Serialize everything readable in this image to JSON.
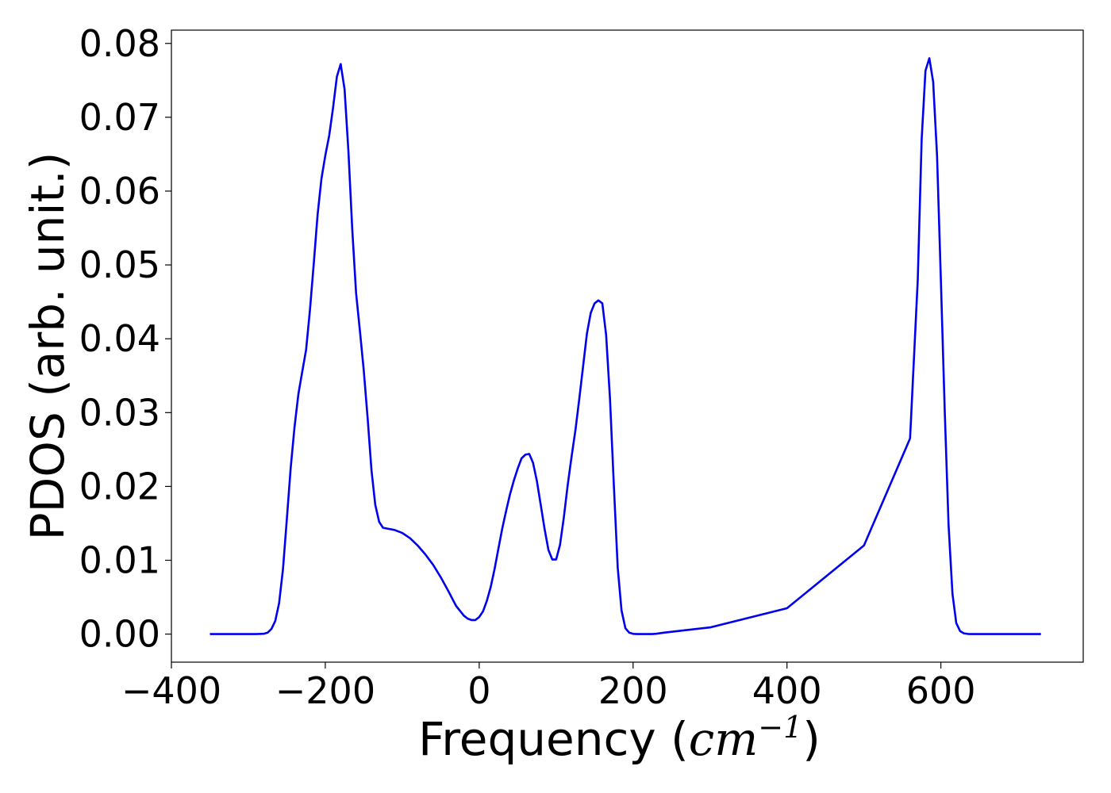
{
  "chart_data": {
    "type": "line",
    "title": "",
    "xlabel": "Frequency (",
    "xlabel_unit": "cm",
    "xlabel_exp": "−1",
    "xlabel_close": ")",
    "ylabel": "PDOS (arb. unit.)",
    "xlim": [
      -400,
      785
    ],
    "ylim": [
      -0.0038,
      0.0818
    ],
    "x_ticks": [
      -400,
      -200,
      0,
      200,
      400,
      600
    ],
    "x_tick_labels": [
      "−400",
      "−200",
      "0",
      "200",
      "400",
      "600"
    ],
    "y_ticks": [
      0.0,
      0.01,
      0.02,
      0.03,
      0.04,
      0.05,
      0.06,
      0.07,
      0.08
    ],
    "y_tick_labels": [
      "0.00",
      "0.01",
      "0.02",
      "0.03",
      "0.04",
      "0.05",
      "0.06",
      "0.07",
      "0.08"
    ],
    "grid": false,
    "legend": "none",
    "series": [
      {
        "color": "#0000ee",
        "x": [
          -350,
          -300,
          -290,
          -280,
          -275,
          -270,
          -265,
          -260,
          -255,
          -250,
          -245,
          -240,
          -235,
          -230,
          -225,
          -220,
          -215,
          -210,
          -205,
          -200,
          -195,
          -190,
          -185,
          -180,
          -175,
          -170,
          -165,
          -160,
          -155,
          -150,
          -145,
          -140,
          -135,
          -130,
          -125,
          -120,
          -115,
          -110,
          -100,
          -90,
          -80,
          -70,
          -60,
          -50,
          -40,
          -30,
          -20,
          -15,
          -10,
          -5,
          0,
          5,
          10,
          15,
          20,
          25,
          30,
          35,
          40,
          45,
          50,
          55,
          60,
          65,
          70,
          75,
          80,
          85,
          90,
          95,
          100,
          105,
          110,
          115,
          120,
          125,
          130,
          135,
          140,
          145,
          150,
          155,
          160,
          165,
          170,
          175,
          180,
          185,
          190,
          195,
          200,
          205,
          210,
          215,
          220,
          225,
          230,
          240,
          300,
          400,
          500,
          560,
          570,
          575,
          580,
          585,
          590,
          595,
          600,
          605,
          610,
          615,
          620,
          625,
          630,
          635,
          640,
          645,
          650,
          655,
          660,
          665,
          670,
          680,
          700,
          730
        ],
        "y": [
          0.0,
          0.0,
          0.0,
          5e-05,
          0.0002,
          0.0007,
          0.0018,
          0.0042,
          0.0088,
          0.0155,
          0.0225,
          0.028,
          0.0325,
          0.0355,
          0.0385,
          0.0438,
          0.0502,
          0.0568,
          0.0617,
          0.0648,
          0.0675,
          0.0712,
          0.0755,
          0.0772,
          0.0738,
          0.0655,
          0.0548,
          0.0462,
          0.041,
          0.0357,
          0.0292,
          0.0222,
          0.0175,
          0.0152,
          0.0144,
          0.0143,
          0.0142,
          0.0141,
          0.0137,
          0.013,
          0.012,
          0.0108,
          0.0094,
          0.0077,
          0.0058,
          0.0038,
          0.0025,
          0.0021,
          0.0019,
          0.0019,
          0.0023,
          0.0031,
          0.0045,
          0.0064,
          0.0088,
          0.0116,
          0.0143,
          0.0167,
          0.0189,
          0.0208,
          0.0224,
          0.0238,
          0.0243,
          0.0244,
          0.0232,
          0.0207,
          0.0175,
          0.0142,
          0.0114,
          0.0101,
          0.0101,
          0.0121,
          0.0158,
          0.0202,
          0.024,
          0.0276,
          0.0318,
          0.0362,
          0.0407,
          0.0435,
          0.0448,
          0.0452,
          0.0448,
          0.0405,
          0.0318,
          0.0202,
          0.009,
          0.0032,
          0.0008,
          0.0002,
          3e-05,
          0.0,
          0.0,
          0.0,
          0.0,
          0.0,
          5e-05,
          0.0002,
          0.0009,
          0.0035,
          0.012,
          0.0265,
          0.048,
          0.067,
          0.0763,
          0.078,
          0.0748,
          0.0648,
          0.048,
          0.0302,
          0.0148,
          0.0055,
          0.0015,
          0.0004,
          0.0001,
          2e-05,
          0.0,
          0.0,
          0.0,
          0.0,
          0.0,
          0.0,
          0.0,
          0.0,
          0.0,
          0.0
        ]
      }
    ]
  }
}
